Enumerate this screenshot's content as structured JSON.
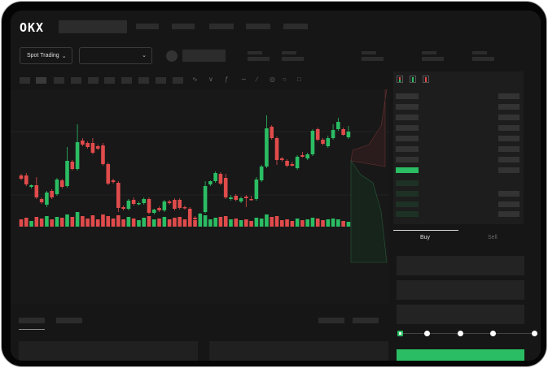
{
  "header": {
    "logo": "OKX"
  },
  "market_selector": {
    "label": "Spot Trading",
    "icon": "chevron-down-icon"
  },
  "pair_selector": {
    "value": "",
    "icon": "chevron-down-icon"
  },
  "toolbar": {
    "icons": [
      "line-chart-icon",
      "candle-icon",
      "indicator-icon",
      "trend-icon",
      "pen-icon",
      "magnet-icon",
      "circle-icon",
      "square-icon"
    ]
  },
  "order_book": {
    "view_icons": [
      "order-book-both-icon",
      "order-book-buy-icon",
      "order-book-sell-icon"
    ]
  },
  "trade_tabs": [
    {
      "label": "Buy",
      "active": true
    },
    {
      "label": "Sell",
      "active": false
    }
  ],
  "slider": {
    "value_percent": 0,
    "stops": [
      0,
      25,
      50,
      75,
      100
    ]
  },
  "colors": {
    "up": "#2bbd63",
    "down": "#e04b4b",
    "background": "#161616"
  },
  "chart_data": {
    "type": "candlestick",
    "ohlc": [
      [
        97,
        99,
        91,
        93
      ],
      [
        97,
        100,
        84,
        86
      ],
      [
        83,
        86,
        81,
        85
      ],
      [
        85,
        95,
        68,
        70
      ],
      [
        68,
        70,
        62,
        64
      ],
      [
        61,
        78,
        58,
        76
      ],
      [
        78,
        80,
        68,
        70
      ],
      [
        74,
        94,
        72,
        92
      ],
      [
        91,
        93,
        81,
        83
      ],
      [
        84,
        132,
        82,
        115
      ],
      [
        114,
        116,
        103,
        105
      ],
      [
        105,
        160,
        103,
        138
      ],
      [
        140,
        143,
        133,
        135
      ],
      [
        137,
        139,
        130,
        132
      ],
      [
        137,
        143,
        123,
        125
      ],
      [
        133,
        135,
        128,
        130
      ],
      [
        134,
        137,
        109,
        111
      ],
      [
        111,
        113,
        85,
        87
      ],
      [
        91,
        93,
        87,
        89
      ],
      [
        88,
        90,
        52,
        57
      ],
      [
        58,
        60,
        54,
        56
      ],
      [
        56,
        68,
        54,
        66
      ],
      [
        67,
        70,
        60,
        62
      ],
      [
        62,
        65,
        60,
        63
      ],
      [
        63,
        70,
        61,
        68
      ],
      [
        68,
        70,
        49,
        51
      ],
      [
        51,
        56,
        49,
        55
      ],
      [
        57,
        59,
        52,
        54
      ],
      [
        54,
        67,
        52,
        65
      ],
      [
        65,
        67,
        61,
        63
      ],
      [
        67,
        69,
        54,
        56
      ],
      [
        67,
        69,
        55,
        57
      ],
      [
        58,
        60,
        55,
        57
      ],
      [
        56,
        58,
        41,
        43
      ],
      [
        45,
        47,
        42,
        43
      ],
      [
        43,
        51,
        41,
        50
      ],
      [
        52,
        90,
        50,
        84
      ],
      [
        86,
        91,
        84,
        90
      ],
      [
        90,
        102,
        88,
        100
      ],
      [
        99,
        101,
        85,
        87
      ],
      [
        94,
        99,
        68,
        70
      ],
      [
        68,
        73,
        66,
        70
      ],
      [
        72,
        74,
        65,
        67
      ],
      [
        65,
        71,
        63,
        69
      ],
      [
        71,
        73,
        58,
        69
      ],
      [
        68,
        72,
        66,
        67
      ],
      [
        68,
        95,
        66,
        92
      ],
      [
        91,
        110,
        89,
        108
      ],
      [
        108,
        171,
        106,
        155
      ],
      [
        157,
        159,
        141,
        143
      ],
      [
        143,
        145,
        110,
        116
      ],
      [
        118,
        120,
        114,
        116
      ],
      [
        115,
        117,
        107,
        109
      ],
      [
        111,
        114,
        108,
        109
      ],
      [
        106,
        122,
        104,
        120
      ],
      [
        122,
        126,
        119,
        120
      ],
      [
        118,
        125,
        116,
        123
      ],
      [
        123,
        154,
        121,
        152
      ],
      [
        154,
        156,
        139,
        141
      ],
      [
        141,
        143,
        134,
        136
      ],
      [
        133,
        146,
        131,
        143
      ],
      [
        143,
        160,
        141,
        153
      ],
      [
        154,
        168,
        152,
        163
      ],
      [
        154,
        156,
        146,
        147
      ],
      [
        144,
        158,
        142,
        151
      ]
    ],
    "volume": [
      9,
      11,
      7,
      12,
      10,
      13,
      9,
      12,
      11,
      15,
      12,
      18,
      13,
      10,
      14,
      9,
      15,
      13,
      10,
      14,
      9,
      12,
      10,
      8,
      11,
      13,
      9,
      10,
      12,
      9,
      11,
      12,
      9,
      13,
      8,
      10,
      14,
      9,
      11,
      12,
      13,
      9,
      10,
      8,
      9,
      7,
      11,
      10,
      15,
      12,
      13,
      8,
      9,
      7,
      10,
      8,
      9,
      11,
      10,
      8,
      9,
      10,
      9,
      7,
      6
    ]
  }
}
